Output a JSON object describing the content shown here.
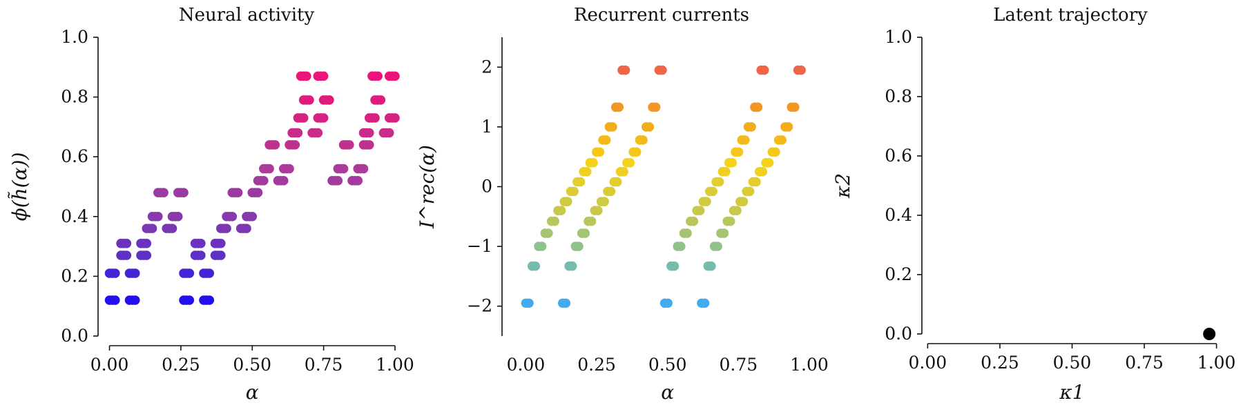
{
  "chart_data": [
    {
      "type": "scatter",
      "title": "Neural activity",
      "xlabel": "α",
      "ylabel": "ϕ(h̃(α))",
      "xlim": [
        -0.04,
        1.0
      ],
      "ylim": [
        0.0,
        1.0
      ],
      "xticks": [
        "0.00",
        "0.25",
        "0.50",
        "0.75",
        "1.00"
      ],
      "yticks": [
        "0.0",
        "0.2",
        "0.4",
        "0.6",
        "0.8",
        "1.0"
      ],
      "grid": false,
      "colormap": "plasma-like (blue → magenta)",
      "x": [
        0.0,
        0.01,
        0.02,
        0.07,
        0.08,
        0.09,
        0.0,
        0.01,
        0.02,
        0.07,
        0.08,
        0.09,
        0.04,
        0.05,
        0.06,
        0.11,
        0.12,
        0.13,
        0.04,
        0.05,
        0.06,
        0.11,
        0.12,
        0.13,
        0.13,
        0.14,
        0.15,
        0.2,
        0.21,
        0.22,
        0.15,
        0.16,
        0.17,
        0.22,
        0.23,
        0.24,
        0.17,
        0.18,
        0.19,
        0.24,
        0.25,
        0.26,
        0.26,
        0.27,
        0.28,
        0.33,
        0.34,
        0.35,
        0.26,
        0.27,
        0.28,
        0.33,
        0.34,
        0.35,
        0.3,
        0.31,
        0.32,
        0.37,
        0.38,
        0.39,
        0.3,
        0.31,
        0.32,
        0.37,
        0.38,
        0.39,
        0.39,
        0.4,
        0.41,
        0.46,
        0.47,
        0.48,
        0.41,
        0.42,
        0.43,
        0.48,
        0.49,
        0.5,
        0.43,
        0.44,
        0.45,
        0.5,
        0.51,
        0.52,
        0.52,
        0.53,
        0.54,
        0.59,
        0.6,
        0.61,
        0.54,
        0.55,
        0.56,
        0.61,
        0.62,
        0.63,
        0.56,
        0.57,
        0.58,
        0.63,
        0.64,
        0.65,
        0.64,
        0.65,
        0.66,
        0.71,
        0.72,
        0.73,
        0.66,
        0.67,
        0.68,
        0.73,
        0.74,
        0.75,
        0.68,
        0.69,
        0.7,
        0.75,
        0.76,
        0.77,
        0.78,
        0.79,
        0.8,
        0.85,
        0.86,
        0.87,
        0.8,
        0.81,
        0.82,
        0.87,
        0.88,
        0.89,
        0.82,
        0.83,
        0.84,
        0.89,
        0.9,
        0.91,
        0.89,
        0.9,
        0.91,
        0.96,
        0.97,
        0.98,
        0.91,
        0.92,
        0.93,
        0.98,
        0.99,
        1.0,
        0.93,
        0.94,
        0.95,
        0.98,
        0.99,
        1.0
      ],
      "y": [
        0.12,
        0.12,
        0.12,
        0.12,
        0.12,
        0.12,
        0.21,
        0.21,
        0.21,
        0.21,
        0.21,
        0.21,
        0.27,
        0.27,
        0.27,
        0.27,
        0.27,
        0.27,
        0.31,
        0.31,
        0.31,
        0.31,
        0.31,
        0.31,
        0.36,
        0.36,
        0.36,
        0.36,
        0.36,
        0.36,
        0.4,
        0.4,
        0.4,
        0.4,
        0.4,
        0.4,
        0.48,
        0.48,
        0.48,
        0.48,
        0.48,
        0.48,
        0.12,
        0.12,
        0.12,
        0.12,
        0.12,
        0.12,
        0.21,
        0.21,
        0.21,
        0.21,
        0.21,
        0.21,
        0.27,
        0.27,
        0.27,
        0.27,
        0.27,
        0.27,
        0.31,
        0.31,
        0.31,
        0.31,
        0.31,
        0.31,
        0.36,
        0.36,
        0.36,
        0.36,
        0.36,
        0.36,
        0.4,
        0.4,
        0.4,
        0.4,
        0.4,
        0.4,
        0.48,
        0.48,
        0.48,
        0.48,
        0.48,
        0.48,
        0.52,
        0.52,
        0.52,
        0.52,
        0.52,
        0.52,
        0.56,
        0.56,
        0.56,
        0.56,
        0.56,
        0.56,
        0.64,
        0.64,
        0.64,
        0.64,
        0.64,
        0.64,
        0.68,
        0.68,
        0.68,
        0.68,
        0.68,
        0.68,
        0.73,
        0.73,
        0.73,
        0.73,
        0.73,
        0.73,
        0.79,
        0.79,
        0.79,
        0.79,
        0.79,
        0.79,
        0.52,
        0.52,
        0.52,
        0.52,
        0.52,
        0.52,
        0.56,
        0.56,
        0.56,
        0.56,
        0.56,
        0.56,
        0.64,
        0.64,
        0.64,
        0.64,
        0.64,
        0.64,
        0.68,
        0.68,
        0.68,
        0.68,
        0.68,
        0.68,
        0.73,
        0.73,
        0.73,
        0.73,
        0.73,
        0.73,
        0.79,
        0.79,
        0.79,
        0.87,
        0.87,
        0.87
      ],
      "extra_points": {
        "x": [
          0.67,
          0.68,
          0.69,
          0.73,
          0.74,
          0.75,
          0.92,
          0.93,
          0.94
        ],
        "y": [
          0.87,
          0.87,
          0.87,
          0.87,
          0.87,
          0.87,
          0.87,
          0.87,
          0.87
        ]
      }
    },
    {
      "type": "scatter",
      "title": "Recurrent currents",
      "xlabel": "α",
      "ylabel": "I^rec(α)",
      "xlim": [
        -0.04,
        1.0
      ],
      "ylim": [
        -2.5,
        2.5
      ],
      "xticks": [
        "0.00",
        "0.25",
        "0.50",
        "0.75",
        "1.00"
      ],
      "yticks": [
        "−2",
        "−1",
        "0",
        "1",
        "2"
      ],
      "grid": false,
      "colormap": "blue → green → yellow → orange → red",
      "levels": [
        -1.95,
        -1.33,
        -1.0,
        -0.78,
        -0.58,
        -0.4,
        -0.25,
        -0.08,
        0.08,
        0.25,
        0.4,
        0.58,
        0.78,
        1.0,
        1.33,
        1.95
      ]
    },
    {
      "type": "scatter",
      "title": "Latent trajectory",
      "xlabel": "κ1",
      "ylabel": "κ2",
      "xlim": [
        -0.02,
        1.02
      ],
      "ylim": [
        0.0,
        1.0
      ],
      "xticks": [
        "0.00",
        "0.25",
        "0.50",
        "0.75",
        "1.00"
      ],
      "yticks": [
        "0.0",
        "0.2",
        "0.4",
        "0.6",
        "0.8",
        "1.0"
      ],
      "grid": false,
      "points": [
        {
          "x": 0.975,
          "y": 0.0
        }
      ]
    }
  ]
}
